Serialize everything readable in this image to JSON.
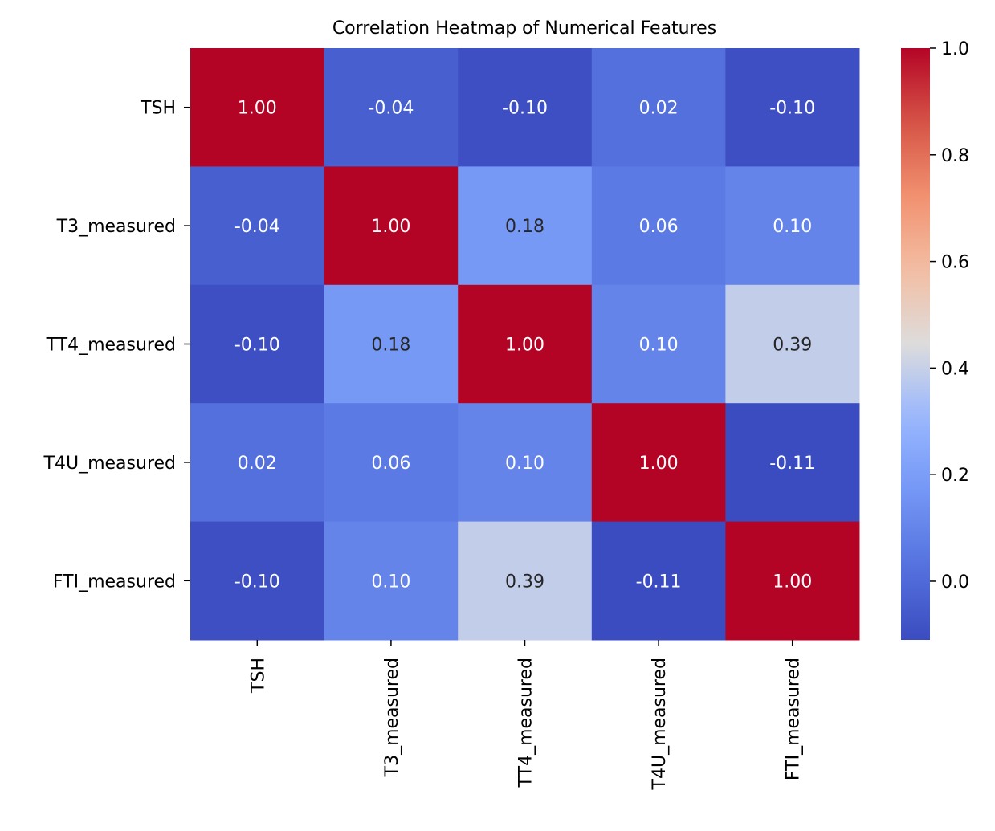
{
  "chart_data": {
    "type": "heatmap",
    "title": "Correlation Heatmap of Numerical Features",
    "xlabel": "",
    "ylabel": "",
    "rows": [
      "TSH",
      "T3_measured",
      "TT4_measured",
      "T4U_measured",
      "FTI_measured"
    ],
    "columns": [
      "TSH",
      "T3_measured",
      "TT4_measured",
      "T4U_measured",
      "FTI_measured"
    ],
    "values": [
      [
        1.0,
        -0.04,
        -0.1,
        0.02,
        -0.1
      ],
      [
        -0.04,
        1.0,
        0.18,
        0.06,
        0.1
      ],
      [
        -0.1,
        0.18,
        1.0,
        0.1,
        0.39
      ],
      [
        0.02,
        0.06,
        0.1,
        1.0,
        -0.11
      ],
      [
        -0.1,
        0.1,
        0.39,
        -0.11,
        1.0
      ]
    ],
    "annotation_format": "0.00",
    "colormap": "coolwarm",
    "color_range": [
      -0.11,
      1.0
    ],
    "colorbar_ticks": [
      "0.0",
      "0.2",
      "0.4",
      "0.6",
      "0.8",
      "1.0"
    ],
    "colorbar_tick_values": [
      0.0,
      0.2,
      0.4,
      0.6,
      0.8,
      1.0
    ],
    "legend": "colorbar-right",
    "grid": false
  }
}
